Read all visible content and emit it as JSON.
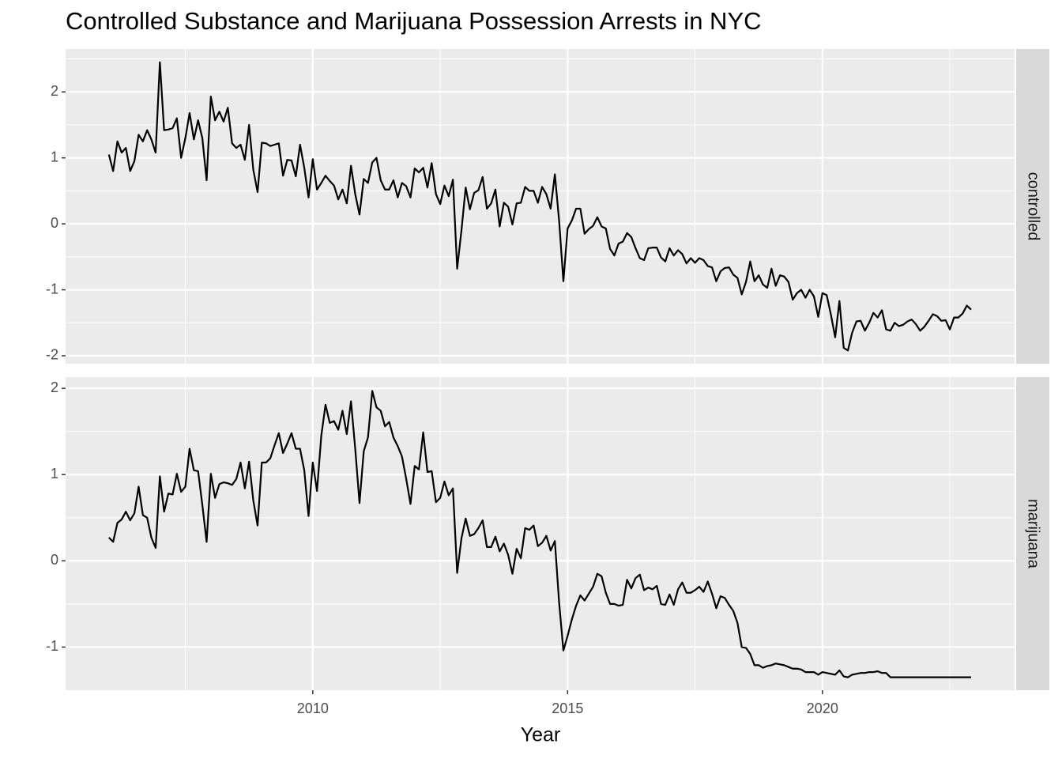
{
  "chart_data": {
    "type": "line",
    "title": "Controlled Substance and Marijuana Possession Arrests in NYC",
    "xlabel": "Year",
    "xlim": [
      2005.15,
      2023.77
    ],
    "xticks": [
      2010,
      2015,
      2020
    ],
    "grid": true,
    "minor_grid": true,
    "x": [
      2006,
      2006.083,
      2006.167,
      2006.25,
      2006.333,
      2006.417,
      2006.5,
      2006.583,
      2006.667,
      2006.75,
      2006.833,
      2006.917,
      2007,
      2007.083,
      2007.167,
      2007.25,
      2007.333,
      2007.417,
      2007.5,
      2007.583,
      2007.667,
      2007.75,
      2007.833,
      2007.917,
      2008,
      2008.083,
      2008.167,
      2008.25,
      2008.333,
      2008.417,
      2008.5,
      2008.583,
      2008.667,
      2008.75,
      2008.833,
      2008.917,
      2009,
      2009.083,
      2009.167,
      2009.25,
      2009.333,
      2009.417,
      2009.5,
      2009.583,
      2009.667,
      2009.75,
      2009.833,
      2009.917,
      2010,
      2010.083,
      2010.167,
      2010.25,
      2010.333,
      2010.417,
      2010.5,
      2010.583,
      2010.667,
      2010.75,
      2010.833,
      2010.917,
      2011,
      2011.083,
      2011.167,
      2011.25,
      2011.333,
      2011.417,
      2011.5,
      2011.583,
      2011.667,
      2011.75,
      2011.833,
      2011.917,
      2012,
      2012.083,
      2012.167,
      2012.25,
      2012.333,
      2012.417,
      2012.5,
      2012.583,
      2012.667,
      2012.75,
      2012.833,
      2012.917,
      2013,
      2013.083,
      2013.167,
      2013.25,
      2013.333,
      2013.417,
      2013.5,
      2013.583,
      2013.667,
      2013.75,
      2013.833,
      2013.917,
      2014,
      2014.083,
      2014.167,
      2014.25,
      2014.333,
      2014.417,
      2014.5,
      2014.583,
      2014.667,
      2014.75,
      2014.833,
      2014.917,
      2015,
      2015.083,
      2015.167,
      2015.25,
      2015.333,
      2015.417,
      2015.5,
      2015.583,
      2015.667,
      2015.75,
      2015.833,
      2015.917,
      2016,
      2016.083,
      2016.167,
      2016.25,
      2016.333,
      2016.417,
      2016.5,
      2016.583,
      2016.667,
      2016.75,
      2016.833,
      2016.917,
      2017,
      2017.083,
      2017.167,
      2017.25,
      2017.333,
      2017.417,
      2017.5,
      2017.583,
      2017.667,
      2017.75,
      2017.833,
      2017.917,
      2018,
      2018.083,
      2018.167,
      2018.25,
      2018.333,
      2018.417,
      2018.5,
      2018.583,
      2018.667,
      2018.75,
      2018.833,
      2018.917,
      2019,
      2019.083,
      2019.167,
      2019.25,
      2019.333,
      2019.417,
      2019.5,
      2019.583,
      2019.667,
      2019.75,
      2019.833,
      2019.917,
      2020,
      2020.083,
      2020.167,
      2020.25,
      2020.333,
      2020.417,
      2020.5,
      2020.583,
      2020.667,
      2020.75,
      2020.833,
      2020.917,
      2021,
      2021.083,
      2021.167,
      2021.25,
      2021.333,
      2021.417,
      2021.5,
      2021.583,
      2021.667,
      2021.75,
      2021.833,
      2021.917,
      2022,
      2022.083,
      2022.167,
      2022.25,
      2022.333,
      2022.417,
      2022.5,
      2022.583,
      2022.667,
      2022.75,
      2022.833,
      2022.917
    ],
    "series": [
      {
        "name": "controlled",
        "color": "#000000",
        "ylim": [
          -2.12,
          2.65
        ],
        "yticks": [
          -2,
          -1,
          0,
          1,
          2
        ],
        "values": [
          1.05,
          0.8,
          1.25,
          1.08,
          1.15,
          0.8,
          0.95,
          1.35,
          1.25,
          1.42,
          1.28,
          1.08,
          2.45,
          1.42,
          1.43,
          1.45,
          1.6,
          1.0,
          1.3,
          1.68,
          1.28,
          1.57,
          1.3,
          0.66,
          1.93,
          1.57,
          1.7,
          1.55,
          1.76,
          1.22,
          1.15,
          1.2,
          0.97,
          1.5,
          0.82,
          0.48,
          1.23,
          1.22,
          1.18,
          1.2,
          1.22,
          0.73,
          0.97,
          0.96,
          0.72,
          1.2,
          0.85,
          0.4,
          0.98,
          0.52,
          0.62,
          0.73,
          0.65,
          0.58,
          0.37,
          0.52,
          0.31,
          0.88,
          0.45,
          0.14,
          0.68,
          0.62,
          0.93,
          1.0,
          0.66,
          0.52,
          0.52,
          0.66,
          0.4,
          0.62,
          0.57,
          0.4,
          0.84,
          0.78,
          0.85,
          0.55,
          0.92,
          0.45,
          0.3,
          0.58,
          0.42,
          0.67,
          -0.68,
          -0.1,
          0.55,
          0.22,
          0.47,
          0.51,
          0.71,
          0.23,
          0.31,
          0.52,
          -0.04,
          0.32,
          0.26,
          -0.01,
          0.31,
          0.32,
          0.56,
          0.5,
          0.5,
          0.32,
          0.56,
          0.45,
          0.23,
          0.75,
          0.05,
          -0.87,
          -0.07,
          0.05,
          0.23,
          0.23,
          -0.15,
          -0.08,
          -0.03,
          0.1,
          -0.04,
          -0.07,
          -0.38,
          -0.48,
          -0.3,
          -0.27,
          -0.14,
          -0.2,
          -0.37,
          -0.52,
          -0.55,
          -0.37,
          -0.36,
          -0.36,
          -0.51,
          -0.57,
          -0.37,
          -0.48,
          -0.4,
          -0.46,
          -0.6,
          -0.52,
          -0.59,
          -0.52,
          -0.55,
          -0.64,
          -0.66,
          -0.87,
          -0.72,
          -0.67,
          -0.66,
          -0.77,
          -0.82,
          -1.07,
          -0.88,
          -0.57,
          -0.87,
          -0.78,
          -0.92,
          -0.97,
          -0.68,
          -0.94,
          -0.78,
          -0.8,
          -0.88,
          -1.15,
          -1.05,
          -1.0,
          -1.12,
          -1.0,
          -1.1,
          -1.41,
          -1.05,
          -1.08,
          -1.38,
          -1.72,
          -1.17,
          -1.88,
          -1.92,
          -1.65,
          -1.48,
          -1.47,
          -1.62,
          -1.5,
          -1.35,
          -1.42,
          -1.31,
          -1.6,
          -1.62,
          -1.5,
          -1.55,
          -1.53,
          -1.48,
          -1.45,
          -1.52,
          -1.62,
          -1.56,
          -1.47,
          -1.37,
          -1.4,
          -1.47,
          -1.46,
          -1.6,
          -1.42,
          -1.42,
          -1.36,
          -1.24,
          -1.3
        ]
      },
      {
        "name": "marijuana",
        "color": "#000000",
        "ylim": [
          -1.5,
          2.13
        ],
        "yticks": [
          -1,
          0,
          1,
          2
        ],
        "values": [
          0.27,
          0.22,
          0.44,
          0.48,
          0.57,
          0.47,
          0.55,
          0.86,
          0.53,
          0.5,
          0.27,
          0.15,
          0.98,
          0.57,
          0.78,
          0.77,
          1.01,
          0.8,
          0.86,
          1.3,
          1.05,
          1.04,
          0.65,
          0.22,
          1.01,
          0.73,
          0.89,
          0.91,
          0.9,
          0.88,
          0.95,
          1.14,
          0.84,
          1.15,
          0.7,
          0.41,
          1.14,
          1.14,
          1.19,
          1.34,
          1.48,
          1.25,
          1.36,
          1.48,
          1.3,
          1.3,
          1.05,
          0.52,
          1.14,
          0.81,
          1.45,
          1.81,
          1.6,
          1.62,
          1.52,
          1.74,
          1.47,
          1.85,
          1.3,
          0.67,
          1.27,
          1.43,
          1.97,
          1.78,
          1.74,
          1.56,
          1.61,
          1.43,
          1.33,
          1.21,
          0.95,
          0.66,
          1.1,
          1.06,
          1.49,
          1.03,
          1.04,
          0.68,
          0.73,
          0.92,
          0.76,
          0.84,
          -0.14,
          0.26,
          0.49,
          0.29,
          0.31,
          0.38,
          0.47,
          0.16,
          0.16,
          0.28,
          0.11,
          0.2,
          0.07,
          -0.15,
          0.14,
          0.03,
          0.38,
          0.36,
          0.41,
          0.17,
          0.21,
          0.29,
          0.12,
          0.23,
          -0.48,
          -1.04,
          -0.87,
          -0.68,
          -0.52,
          -0.4,
          -0.46,
          -0.38,
          -0.3,
          -0.15,
          -0.18,
          -0.37,
          -0.5,
          -0.5,
          -0.52,
          -0.51,
          -0.22,
          -0.32,
          -0.2,
          -0.16,
          -0.34,
          -0.31,
          -0.33,
          -0.29,
          -0.5,
          -0.51,
          -0.39,
          -0.51,
          -0.33,
          -0.25,
          -0.37,
          -0.37,
          -0.34,
          -0.3,
          -0.36,
          -0.24,
          -0.38,
          -0.55,
          -0.41,
          -0.43,
          -0.51,
          -0.58,
          -0.72,
          -1.0,
          -1.01,
          -1.08,
          -1.21,
          -1.21,
          -1.24,
          -1.22,
          -1.21,
          -1.19,
          -1.2,
          -1.21,
          -1.23,
          -1.25,
          -1.25,
          -1.26,
          -1.29,
          -1.29,
          -1.29,
          -1.32,
          -1.29,
          -1.3,
          -1.31,
          -1.32,
          -1.27,
          -1.34,
          -1.35,
          -1.32,
          -1.31,
          -1.3,
          -1.3,
          -1.29,
          -1.29,
          -1.28,
          -1.3,
          -1.3,
          -1.35,
          -1.35,
          -1.35,
          -1.35,
          -1.35,
          -1.35,
          -1.35,
          -1.35,
          -1.35,
          -1.35,
          -1.35,
          -1.35,
          -1.35,
          -1.35,
          -1.35,
          -1.35,
          -1.35,
          -1.35,
          -1.35,
          -1.35
        ]
      }
    ]
  }
}
